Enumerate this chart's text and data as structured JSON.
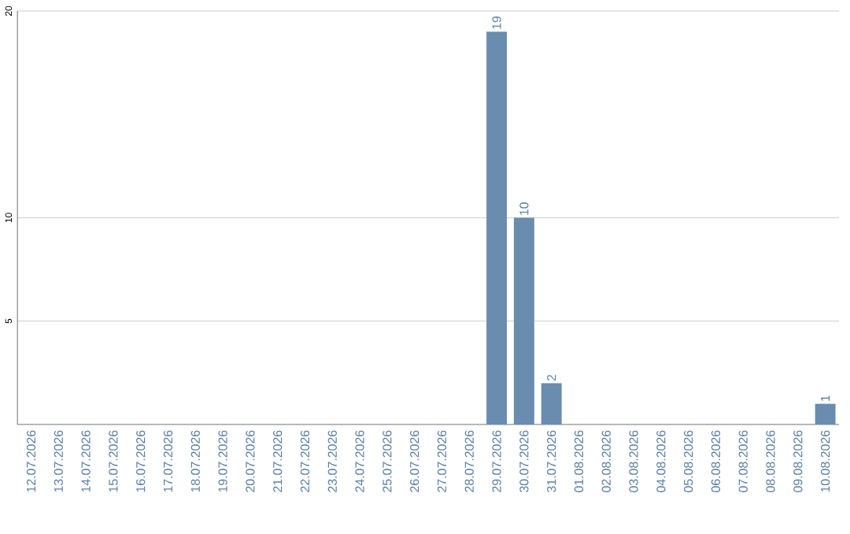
{
  "chart_data": {
    "type": "bar",
    "categories": [
      "12.07.2026",
      "13.07.2026",
      "14.07.2026",
      "15.07.2026",
      "16.07.2026",
      "17.07.2026",
      "18.07.2026",
      "19.07.2026",
      "20.07.2026",
      "21.07.2026",
      "22.07.2026",
      "23.07.2026",
      "24.07.2026",
      "25.07.2026",
      "26.07.2026",
      "27.07.2026",
      "28.07.2026",
      "29.07.2026",
      "30.07.2026",
      "31.07.2026",
      "01.08.2026",
      "02.08.2026",
      "03.08.2026",
      "04.08.2026",
      "05.08.2026",
      "06.08.2026",
      "07.08.2026",
      "08.08.2026",
      "09.08.2026",
      "10.08.2026"
    ],
    "values": [
      0,
      0,
      0,
      0,
      0,
      0,
      0,
      0,
      0,
      0,
      0,
      0,
      0,
      0,
      0,
      0,
      0,
      19,
      10,
      2,
      0,
      0,
      0,
      0,
      0,
      0,
      0,
      0,
      0,
      1
    ],
    "value_labels": [
      null,
      null,
      null,
      null,
      null,
      null,
      null,
      null,
      null,
      null,
      null,
      null,
      null,
      null,
      null,
      null,
      null,
      "19",
      "10",
      "2",
      null,
      null,
      null,
      null,
      null,
      null,
      null,
      null,
      null,
      "1"
    ],
    "color": "#6a8caf",
    "ylim": [
      0,
      20
    ],
    "yticks": [
      5,
      10,
      20
    ],
    "grid": "y"
  }
}
